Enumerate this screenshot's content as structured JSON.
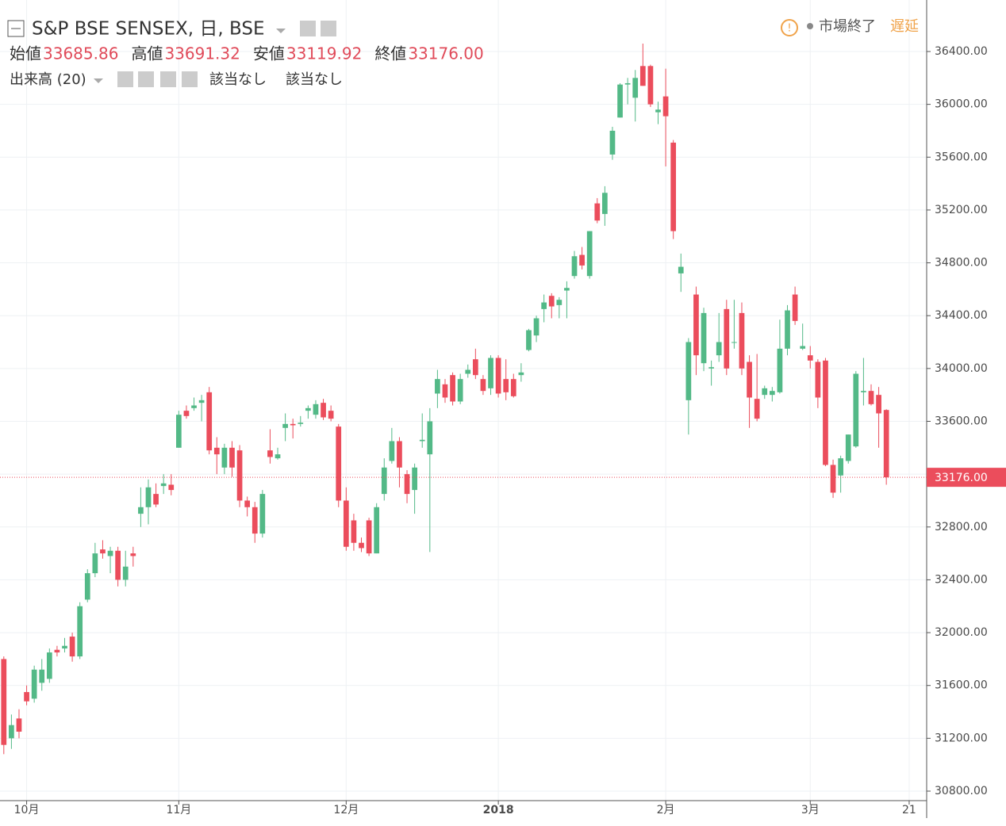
{
  "header": {
    "symbol": "S&P BSE SENSEX, 日, BSE",
    "status": "市場終了",
    "delay": "遅延",
    "ohlc": [
      {
        "label": "始値",
        "value": "33685.86"
      },
      {
        "label": "高値",
        "value": "33691.32"
      },
      {
        "label": "安値",
        "value": "33119.92"
      },
      {
        "label": "終値",
        "value": "33176.00"
      }
    ]
  },
  "volume": {
    "label": "出来高 (20)",
    "values": [
      "該当なし",
      "該当なし"
    ]
  },
  "chart_data": {
    "type": "candlestick",
    "up_color": "#53b987",
    "down_color": "#eb4d5c",
    "xlim": [
      -0.5,
      121.3
    ],
    "ylim": [
      30728,
      36790
    ],
    "xticks": [
      {
        "value": 3,
        "label": "10月"
      },
      {
        "value": 23,
        "label": "11月"
      },
      {
        "value": 45,
        "label": "12月"
      },
      {
        "value": 65,
        "label": "2018"
      },
      {
        "value": 87,
        "label": "2月"
      },
      {
        "value": 106,
        "label": "3月"
      },
      {
        "value": 119,
        "label": "21"
      }
    ],
    "yticks": [
      {
        "value": 30800,
        "label": "30800.00"
      },
      {
        "value": 31200,
        "label": "31200.00"
      },
      {
        "value": 31600,
        "label": "31600.00"
      },
      {
        "value": 32000,
        "label": "32000.00"
      },
      {
        "value": 32400,
        "label": "32400.00"
      },
      {
        "value": 32800,
        "label": "32800.00"
      },
      {
        "value": 33200,
        "label": "33200.00"
      },
      {
        "value": 33600,
        "label": "33600.00"
      },
      {
        "value": 34000,
        "label": "34000.00"
      },
      {
        "value": 34400,
        "label": "34400.00"
      },
      {
        "value": 34800,
        "label": "34800.00"
      },
      {
        "value": 35200,
        "label": "35200.00"
      },
      {
        "value": 35600,
        "label": "35600.00"
      },
      {
        "value": 36000,
        "label": "36000.00"
      },
      {
        "value": 36400,
        "label": "36400.00"
      }
    ],
    "grid": true,
    "last": {
      "value": 33176,
      "label": "33176.00"
    },
    "open": [
      31800,
      31200,
      31350,
      31550,
      31500,
      31620,
      31650,
      31870,
      31880,
      31970,
      31820,
      32250,
      32450,
      32630,
      32580,
      32620,
      32400,
      32600,
      32900,
      32950,
      33050,
      33110,
      33120,
      33400,
      33680,
      33700,
      33740,
      33820,
      33400,
      33250,
      33400,
      33380,
      33000,
      32950,
      32750,
      33380,
      33320,
      33550,
      33580,
      33580,
      33680,
      33650,
      33740,
      33680,
      33560,
      33000,
      32850,
      32680,
      32850,
      32600,
      33050,
      33300,
      33450,
      33200,
      33080,
      33450,
      33350,
      33810,
      33880,
      33950,
      33750,
      33960,
      34070,
      33920,
      33850,
      34080,
      33920,
      33920,
      33950,
      34140,
      34250,
      34450,
      34550,
      34480,
      34590,
      34700,
      34860,
      34700,
      35250,
      35170,
      35620,
      35900,
      36150,
      36050,
      36290,
      36290,
      35940,
      36060,
      35710,
      34720,
      33760,
      34560,
      34040,
      34000,
      34100,
      34450,
      34200,
      34420,
      34050,
      33770,
      33800,
      33800,
      33820,
      34150,
      34560,
      34150,
      34100,
      34050,
      34060,
      33270,
      33190,
      33300,
      33410,
      33820,
      33830,
      33800,
      33685.86
    ],
    "high": [
      31820,
      31380,
      31420,
      31600,
      31750,
      31800,
      31880,
      31900,
      31960,
      32000,
      32230,
      32480,
      32680,
      32700,
      32650,
      32650,
      32620,
      32650,
      33100,
      33160,
      33130,
      33200,
      33200,
      33680,
      33720,
      33780,
      33800,
      33860,
      33480,
      33430,
      33450,
      33420,
      33030,
      32990,
      33080,
      33540,
      33400,
      33660,
      33620,
      33640,
      33720,
      33760,
      33770,
      33720,
      33580,
      33100,
      32900,
      32720,
      32870,
      32980,
      33320,
      33550,
      33480,
      33230,
      33280,
      33660,
      33700,
      33990,
      33920,
      33970,
      33960,
      34030,
      34150,
      33950,
      34100,
      34100,
      34070,
      33960,
      34040,
      34300,
      34400,
      34560,
      34570,
      34540,
      34660,
      34890,
      34920,
      35040,
      35290,
      35380,
      35830,
      36160,
      36200,
      36260,
      36460,
      36300,
      36020,
      36270,
      35730,
      34870,
      34230,
      34620,
      34460,
      34060,
      34420,
      34520,
      34520,
      34500,
      34100,
      34110,
      33870,
      33860,
      34370,
      34480,
      34620,
      34340,
      34170,
      34070,
      34080,
      33310,
      33340,
      33500,
      33980,
      34080,
      33880,
      33860,
      33691.32
    ],
    "low": [
      31080,
      31120,
      31200,
      31450,
      31470,
      31560,
      31620,
      31820,
      31850,
      31780,
      31800,
      32230,
      32420,
      32560,
      32450,
      32350,
      32350,
      32500,
      32800,
      32820,
      32950,
      33050,
      33040,
      33400,
      33620,
      33680,
      33600,
      33350,
      33200,
      33200,
      33180,
      32950,
      32880,
      32680,
      32720,
      33280,
      33310,
      33450,
      33470,
      33560,
      33620,
      33620,
      33610,
      33600,
      32950,
      32620,
      32620,
      32610,
      32580,
      32600,
      33000,
      33280,
      33100,
      32980,
      32900,
      33400,
      32610,
      33700,
      33740,
      33720,
      33730,
      33930,
      33920,
      33800,
      33800,
      33780,
      33760,
      33780,
      33900,
      34130,
      34200,
      34350,
      34380,
      34380,
      34380,
      34680,
      34750,
      34680,
      35100,
      35080,
      35580,
      35900,
      36000,
      35870,
      36140,
      35980,
      35850,
      35530,
      34980,
      34580,
      33500,
      33950,
      33980,
      33870,
      34050,
      33950,
      34150,
      33950,
      33550,
      33600,
      33770,
      33750,
      33810,
      34100,
      34330,
      34140,
      34000,
      33700,
      33260,
      33020,
      33060,
      33280,
      33400,
      33720,
      33720,
      33400,
      33119.92
    ],
    "close": [
      31150,
      31300,
      31250,
      31480,
      31720,
      31720,
      31850,
      31850,
      31900,
      31820,
      32200,
      32450,
      32600,
      32600,
      32620,
      32400,
      32500,
      32580,
      32950,
      33100,
      32970,
      33130,
      33080,
      33650,
      33640,
      33720,
      33760,
      33380,
      33350,
      33400,
      33250,
      33000,
      32950,
      32750,
      33050,
      33330,
      33350,
      33580,
      33570,
      33590,
      33700,
      33730,
      33630,
      33620,
      33000,
      32650,
      32680,
      32640,
      32600,
      32950,
      33250,
      33450,
      33250,
      33050,
      33250,
      33460,
      33600,
      33920,
      33780,
      33750,
      33920,
      33990,
      33950,
      33830,
      34080,
      33810,
      33820,
      33790,
      33970,
      34290,
      34380,
      34500,
      34470,
      34520,
      34610,
      34850,
      34780,
      35040,
      35120,
      35330,
      35800,
      36150,
      36160,
      36200,
      36140,
      36000,
      35960,
      35910,
      35040,
      34770,
      34200,
      34100,
      34420,
      34010,
      34200,
      34000,
      34200,
      34000,
      33780,
      33620,
      33850,
      33830,
      34150,
      34440,
      34360,
      34170,
      34060,
      33780,
      33270,
      33060,
      33320,
      33500,
      33960,
      33830,
      33730,
      33660,
      33176
    ]
  }
}
